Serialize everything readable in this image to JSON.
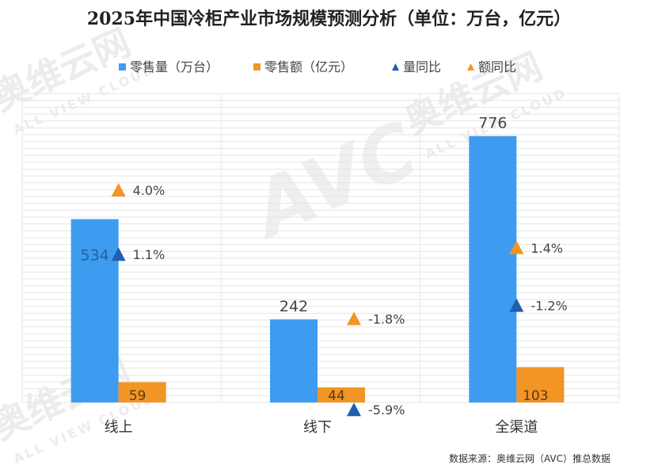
{
  "title": "2025年中国冷柜产业市场规模预测分析（单位：万台，亿元）",
  "source": "数据来源：奥维云网（AVC）推总数据",
  "watermark": {
    "text_cn": "奥维云网",
    "text_en": "ALL VIEW CLOUD",
    "logo": "AVC"
  },
  "colors": {
    "volume": "#3d9cf0",
    "amount": "#f29524",
    "vol_yoy": "#1f5fb0",
    "amt_yoy": "#f29524",
    "grid": "#e6e6e6"
  },
  "chart_data": {
    "type": "bar",
    "categories": [
      "线上",
      "线下",
      "全渠道"
    ],
    "series": [
      {
        "name": "零售量（万台）",
        "values": [
          534,
          242,
          776
        ],
        "labels": [
          "534",
          "242",
          "776"
        ]
      },
      {
        "name": "零售额（亿元）",
        "values": [
          59,
          44,
          103
        ],
        "labels": [
          "59",
          "44",
          "103"
        ]
      }
    ],
    "yoy": [
      {
        "name": "量同比",
        "values": [
          1.1,
          -5.9,
          -1.2
        ],
        "labels": [
          "1.1%",
          "-5.9%",
          "-1.2%"
        ]
      },
      {
        "name": "额同比",
        "values": [
          4.0,
          -1.8,
          1.4
        ],
        "labels": [
          "4.0%",
          "-1.8%",
          "1.4%"
        ]
      }
    ],
    "ylim": [
      0,
      900
    ],
    "legend": "top",
    "grid": true
  }
}
